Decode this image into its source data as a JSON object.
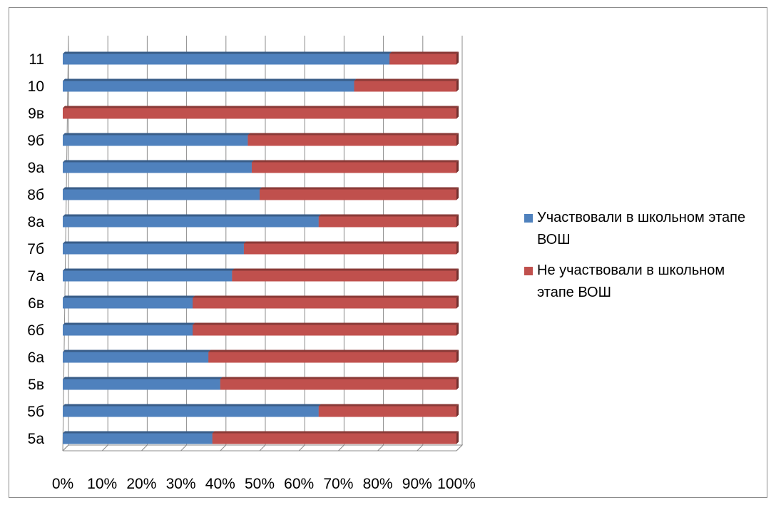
{
  "chart_data": {
    "type": "bar",
    "orientation": "horizontal",
    "stacked": "percent",
    "categories": [
      "5а",
      "5б",
      "5в",
      "6а",
      "6б",
      "6в",
      "7а",
      "7б",
      "8а",
      "8б",
      "9а",
      "9б",
      "9в",
      "10",
      "11"
    ],
    "series": [
      {
        "name": "Участвовали в школьном этапе ВОШ",
        "color": "#4f81bd",
        "values": [
          38,
          65,
          40,
          37,
          33,
          33,
          43,
          46,
          65,
          50,
          48,
          47,
          0,
          74,
          83
        ]
      },
      {
        "name": "Не участвовали в школьном этапе ВОШ",
        "color": "#c0504d",
        "values": [
          62,
          35,
          60,
          63,
          67,
          67,
          57,
          54,
          35,
          50,
          52,
          53,
          100,
          26,
          17
        ]
      }
    ],
    "x_ticks": [
      "0%",
      "10%",
      "20%",
      "30%",
      "40%",
      "50%",
      "60%",
      "70%",
      "80%",
      "90%",
      "100%"
    ],
    "xlim": [
      0,
      100
    ],
    "grid": true,
    "legend_position": "right"
  }
}
